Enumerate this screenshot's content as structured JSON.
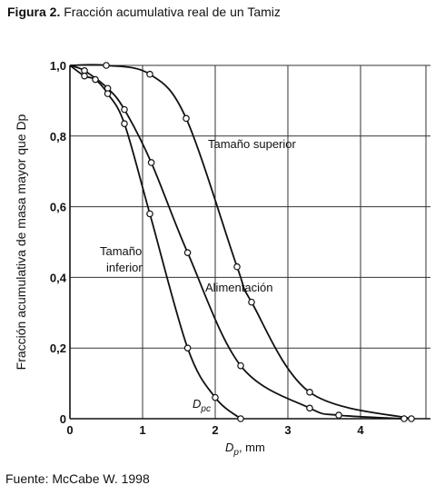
{
  "figure": {
    "caption_prefix": "Figura 2.",
    "caption_text": " Fracción acumulativa real de un Tamiz",
    "source": "Fuente: McCabe W. 1998"
  },
  "chart_data": {
    "type": "line",
    "ylabel": "Fracción acumulativa de masa mayor que Dp",
    "xlabel_main": "D",
    "xlabel_sub": "p",
    "xlabel_unit": ", mm",
    "xlim": [
      0,
      5
    ],
    "ylim": [
      0,
      1
    ],
    "grid": true,
    "x_ticks": [
      0,
      1,
      2,
      3,
      4
    ],
    "x_tick_labels": [
      "0",
      "1",
      "2",
      "3",
      "4"
    ],
    "y_ticks": [
      0,
      0.2,
      0.4,
      0.6,
      0.8,
      1.0
    ],
    "y_tick_labels": [
      "0",
      "0,2",
      "0,4",
      "0,6",
      "0,8",
      "1,0"
    ],
    "series": [
      {
        "name": "Tamaño superior",
        "points": [
          [
            0,
            1.0
          ],
          [
            0.5,
            1.0
          ],
          [
            1.1,
            0.975
          ],
          [
            1.6,
            0.85
          ],
          [
            2.3,
            0.43
          ],
          [
            2.5,
            0.33
          ],
          [
            3.3,
            0.075
          ],
          [
            4.7,
            0.0
          ]
        ]
      },
      {
        "name": "Alimentación",
        "points": [
          [
            0,
            1.0
          ],
          [
            0.2,
            0.985
          ],
          [
            0.52,
            0.935
          ],
          [
            0.75,
            0.875
          ],
          [
            1.12,
            0.725
          ],
          [
            1.62,
            0.47
          ],
          [
            2.35,
            0.15
          ],
          [
            3.3,
            0.03
          ],
          [
            3.7,
            0.01
          ],
          [
            4.6,
            0.0
          ]
        ]
      },
      {
        "name": "Tamaño inferior",
        "points": [
          [
            0,
            1.0
          ],
          [
            0.2,
            0.97
          ],
          [
            0.35,
            0.96
          ],
          [
            0.52,
            0.92
          ],
          [
            0.75,
            0.835
          ],
          [
            1.1,
            0.58
          ],
          [
            1.62,
            0.2
          ],
          [
            2.0,
            0.06
          ],
          [
            2.35,
            0.0
          ]
        ]
      }
    ],
    "labels": {
      "superior": "Tamaño superior",
      "alimentacion": "Alimentación",
      "inferior_1": "Tamaño",
      "inferior_2": "inferior",
      "dpc_main": "D",
      "dpc_sub": "pc"
    }
  }
}
